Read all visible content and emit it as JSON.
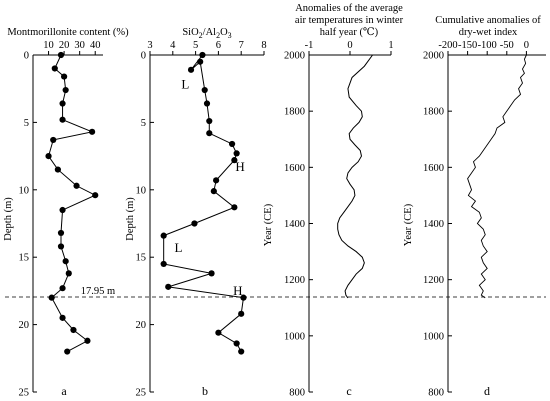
{
  "marker": {
    "label": "17.95 m",
    "depth_m": 17.95,
    "year_ce": 1137
  },
  "chart_data": [
    {
      "type": "line",
      "panel": "a",
      "title": "Montmorillonite content (%)",
      "ylabel": "Depth (m)",
      "xlim": [
        0,
        45
      ],
      "ylim": [
        0,
        25
      ],
      "y_reversed": true,
      "x_ticks": [
        10,
        20,
        30,
        40
      ],
      "y_ticks": [
        0,
        5,
        10,
        15,
        20,
        25
      ],
      "markers": true,
      "depth": [
        0,
        1,
        1.6,
        2.6,
        3.6,
        4.8,
        5.7,
        6.3,
        7.5,
        8.5,
        9.7,
        10.4,
        11.5,
        13.2,
        14.2,
        15.3,
        16.2,
        17.3,
        18,
        19.5,
        20.4,
        21.2,
        22
      ],
      "values": [
        18,
        14,
        20,
        21,
        19,
        19,
        38,
        13,
        10,
        16,
        28,
        40,
        19,
        18,
        18,
        21,
        23,
        19,
        12,
        19,
        26,
        35,
        22
      ]
    },
    {
      "type": "line",
      "panel": "b",
      "title": "SiO2/Al2O3",
      "ylabel": "Depth (m)",
      "xlim": [
        3,
        8
      ],
      "ylim": [
        0,
        25
      ],
      "y_reversed": true,
      "x_ticks": [
        3,
        4,
        5,
        6,
        7,
        8
      ],
      "y_ticks": [
        0,
        5,
        10,
        15,
        20,
        25
      ],
      "markers": true,
      "zone_labels": [
        {
          "text": "L",
          "x": 4.55,
          "depth": 2.2
        },
        {
          "text": "H",
          "x": 6.95,
          "depth": 8.3
        },
        {
          "text": "L",
          "x": 4.25,
          "depth": 14.3
        },
        {
          "text": "H",
          "x": 6.85,
          "depth": 17.5
        }
      ],
      "depth": [
        0,
        1.1,
        0.5,
        2.6,
        3.6,
        4.9,
        5.8,
        6.6,
        7.3,
        7.8,
        9.3,
        10.1,
        11.3,
        12.5,
        13.4,
        15.5,
        16.2,
        17.2,
        18,
        19.2,
        20.6,
        21.4,
        22
      ],
      "values": [
        5.3,
        4.8,
        5.2,
        5.4,
        5.5,
        5.6,
        5.6,
        6.6,
        6.8,
        6.7,
        5.9,
        5.8,
        6.7,
        4.95,
        3.6,
        3.6,
        5.7,
        3.8,
        7.1,
        7.0,
        6.0,
        6.8,
        7.0
      ]
    },
    {
      "type": "line",
      "panel": "c",
      "title": "Anomalies of the average air temperatures in winter half year (℃)",
      "ylabel": "Year (CE)",
      "xlim": [
        -1,
        1
      ],
      "ylim": [
        800,
        2000
      ],
      "x_ticks": [
        -1,
        0,
        1
      ],
      "y_ticks": [
        800,
        1000,
        1200,
        1400,
        1600,
        1800,
        2000
      ],
      "markers": false,
      "year": [
        2000,
        1960,
        1920,
        1880,
        1850,
        1820,
        1800,
        1780,
        1760,
        1740,
        1720,
        1700,
        1680,
        1660,
        1640,
        1620,
        1600,
        1580,
        1560,
        1540,
        1520,
        1500,
        1480,
        1460,
        1440,
        1420,
        1400,
        1380,
        1360,
        1340,
        1320,
        1300,
        1280,
        1260,
        1240,
        1220,
        1200,
        1180,
        1160,
        1145,
        1135
      ],
      "values": [
        0.55,
        0.35,
        0.05,
        -0.05,
        -0.02,
        0.15,
        0.28,
        0.3,
        0.22,
        0.08,
        -0.02,
        0.0,
        0.12,
        0.25,
        0.28,
        0.2,
        0.05,
        -0.05,
        -0.08,
        0.0,
        0.1,
        0.12,
        0.05,
        -0.05,
        -0.15,
        -0.25,
        -0.3,
        -0.3,
        -0.27,
        -0.2,
        -0.05,
        0.15,
        0.3,
        0.35,
        0.3,
        0.15,
        0.05,
        -0.05,
        -0.12,
        -0.1,
        -0.05
      ]
    },
    {
      "type": "line",
      "panel": "d",
      "title": "Cumulative anomalies of dry-wet index",
      "ylabel": "Year (CE)",
      "xlim": [
        -200,
        50
      ],
      "ylim": [
        800,
        2000
      ],
      "x_ticks": [
        -200,
        -150,
        -100,
        -50,
        0
      ],
      "y_ticks": [
        800,
        1000,
        1200,
        1400,
        1600,
        1800,
        2000
      ],
      "markers": false,
      "year": [
        2000,
        1985,
        1970,
        1950,
        1935,
        1920,
        1900,
        1880,
        1860,
        1840,
        1820,
        1800,
        1780,
        1760,
        1740,
        1720,
        1700,
        1680,
        1660,
        1640,
        1620,
        1600,
        1580,
        1560,
        1540,
        1520,
        1500,
        1480,
        1460,
        1440,
        1420,
        1400,
        1380,
        1360,
        1340,
        1320,
        1300,
        1280,
        1260,
        1240,
        1220,
        1200,
        1180,
        1160,
        1145,
        1135
      ],
      "values": [
        0,
        -5,
        -2,
        -10,
        -5,
        -15,
        -10,
        -20,
        -15,
        -30,
        -40,
        -50,
        -60,
        -55,
        -75,
        -80,
        -90,
        -100,
        -110,
        -120,
        -135,
        -130,
        -140,
        -150,
        -145,
        -140,
        -148,
        -130,
        -140,
        -120,
        -115,
        -125,
        -110,
        -105,
        -115,
        -110,
        -100,
        -115,
        -110,
        -100,
        -115,
        -105,
        -120,
        -110,
        -115,
        -105
      ]
    }
  ]
}
